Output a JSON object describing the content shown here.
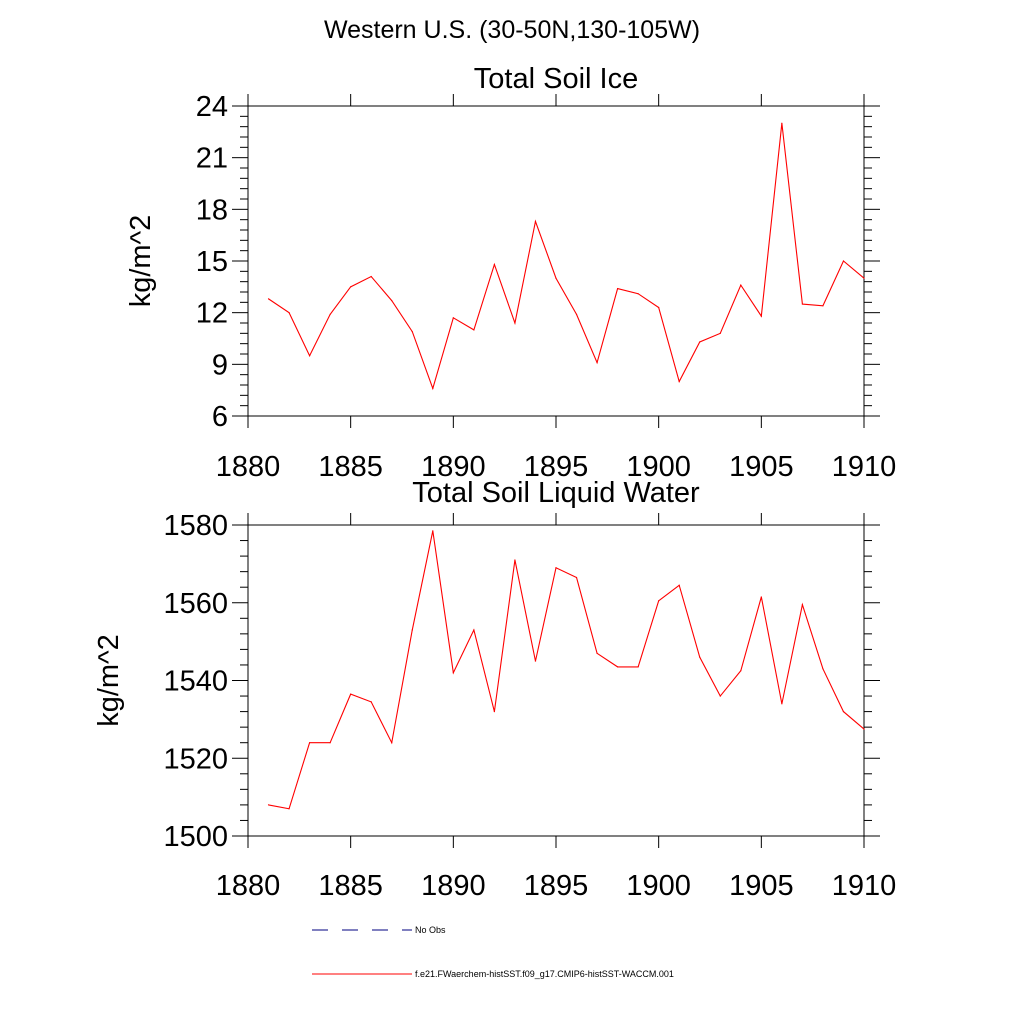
{
  "figure": {
    "title": "Western U.S. (30-50N,130-105W)"
  },
  "colors": {
    "series": "#ff0000",
    "no_obs": "#000080",
    "axis": "#000000"
  },
  "chart_data": [
    {
      "type": "line",
      "title": "Total Soil Ice",
      "xlabel": "",
      "ylabel": "kg/m^2",
      "xlim": [
        1880,
        1910
      ],
      "ylim": [
        6,
        24
      ],
      "xticks": [
        1880,
        1885,
        1890,
        1895,
        1900,
        1905,
        1910
      ],
      "yticks": [
        6,
        9,
        12,
        15,
        18,
        21,
        24
      ],
      "grid": false,
      "series": [
        {
          "name": "f.e21.FWaerchem-histSST.f09_g17.CMIP6-histSST-WACCM.001",
          "x": [
            1881,
            1882,
            1883,
            1884,
            1885,
            1886,
            1887,
            1888,
            1889,
            1890,
            1891,
            1892,
            1893,
            1894,
            1895,
            1896,
            1897,
            1898,
            1899,
            1900,
            1901,
            1902,
            1903,
            1904,
            1905,
            1906,
            1907,
            1908,
            1909,
            1910
          ],
          "y": [
            12.8,
            12.0,
            9.5,
            11.9,
            13.5,
            14.1,
            12.7,
            10.9,
            7.6,
            11.7,
            11.0,
            14.8,
            11.4,
            17.3,
            14.0,
            11.9,
            9.1,
            13.4,
            13.1,
            12.3,
            8.0,
            10.3,
            10.8,
            13.6,
            11.8,
            23.0,
            12.5,
            12.4,
            15.0,
            14.0
          ]
        }
      ]
    },
    {
      "type": "line",
      "title": "Total Soil Liquid Water",
      "xlabel": "",
      "ylabel": "kg/m^2",
      "xlim": [
        1880,
        1910
      ],
      "ylim": [
        1500,
        1580
      ],
      "xticks": [
        1880,
        1885,
        1890,
        1895,
        1900,
        1905,
        1910
      ],
      "yticks": [
        1500,
        1520,
        1540,
        1560,
        1580
      ],
      "grid": false,
      "series": [
        {
          "name": "f.e21.FWaerchem-histSST.f09_g17.CMIP6-histSST-WACCM.001",
          "x": [
            1881,
            1882,
            1883,
            1884,
            1885,
            1886,
            1887,
            1888,
            1889,
            1890,
            1891,
            1892,
            1893,
            1894,
            1895,
            1896,
            1897,
            1898,
            1899,
            1900,
            1901,
            1902,
            1903,
            1904,
            1905,
            1906,
            1907,
            1908,
            1909,
            1910
          ],
          "y": [
            1508,
            1507,
            1524,
            1524,
            1536.5,
            1534.5,
            1524,
            1553,
            1578.5,
            1542,
            1553,
            1532,
            1571,
            1545,
            1569,
            1566.5,
            1547,
            1543.5,
            1543.5,
            1560.5,
            1564.5,
            1546,
            1536,
            1542.5,
            1561.5,
            1534,
            1559.5,
            1543,
            1532,
            1527.5
          ]
        }
      ]
    }
  ],
  "legend": {
    "placement": "bottom",
    "items": [
      {
        "label": "No Obs",
        "style": "dashed"
      },
      {
        "label": "f.e21.FWaerchem-histSST.f09_g17.CMIP6-histSST-WACCM.001",
        "style": "solid"
      }
    ]
  }
}
